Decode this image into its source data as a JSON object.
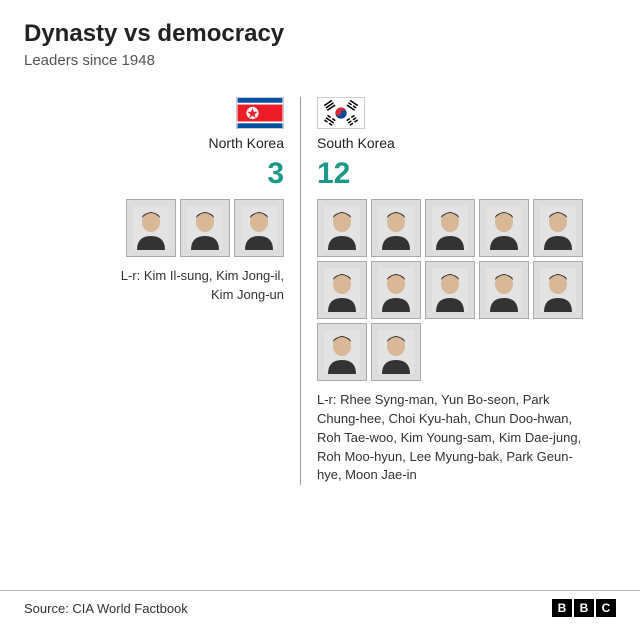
{
  "title": "Dynasty vs democracy",
  "subtitle": "Leaders since 1948",
  "accent_color": "#1a9988",
  "left": {
    "country": "North Korea",
    "count": "3",
    "portrait_count": 3,
    "caption": "L-r: Kim Il-sung, Kim Jong-il, Kim Jong-un",
    "flag": {
      "type": "north-korea",
      "bg": "#024FA2",
      "stripe": "#ED1C27",
      "white": "#FFFFFF",
      "star": "#ED1C27"
    }
  },
  "right": {
    "country": "South Korea",
    "count": "12",
    "portrait_count": 12,
    "caption": "L-r: Rhee Syng-man, Yun Bo-seon, Park Chung-hee, Choi Kyu-hah, Chun Doo-hwan, Roh Tae-woo, Kim Young-sam, Kim Dae-jung, Roh Moo-hyun, Lee Myung-bak, Park Geun-hye, Moon Jae-in",
    "flag": {
      "type": "south-korea",
      "bg": "#FFFFFF",
      "red": "#CD2E3A",
      "blue": "#0047A0",
      "black": "#000000"
    }
  },
  "source": "Source: CIA World Factbook",
  "brand": {
    "b1": "B",
    "b2": "B",
    "b3": "C"
  },
  "portrait_placeholder": {
    "skin": "#d8b896",
    "hair": "#2a2a2a",
    "suit": "#333333"
  }
}
